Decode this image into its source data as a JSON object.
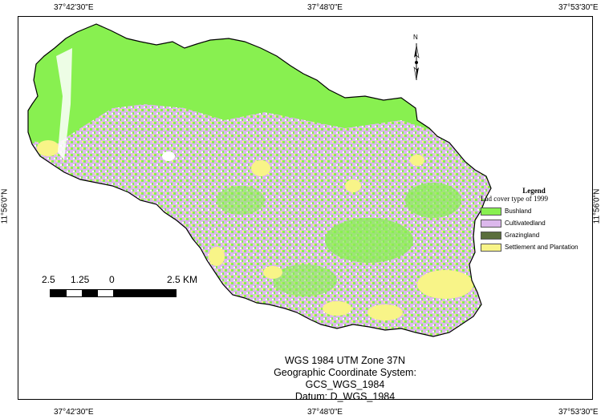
{
  "graticule": {
    "top_labels": [
      "37°42'30\"E",
      "37°48'0\"E",
      "37°53'30\"E"
    ],
    "bottom_labels": [
      "37°42'30\"E",
      "37°48'0\"E",
      "37°53'30\"E"
    ],
    "left_label": "11°56'0\"N",
    "right_label": "11°56'0\"N"
  },
  "north_arrow": {
    "label": "N",
    "icon": "north-arrow-icon"
  },
  "legend": {
    "title": "Legend",
    "subtitle": "Lad cover type of 1999",
    "items": [
      {
        "label": "Bushland",
        "color": "#88f050"
      },
      {
        "label": "Cultivatedland",
        "color": "#dcb8ec"
      },
      {
        "label": "Grazingland",
        "color": "#5a6e3c"
      },
      {
        "label": "Settlement and Plantation",
        "color": "#f8f488"
      }
    ]
  },
  "scale_bar": {
    "labels": [
      "2.5",
      "1.25",
      "0",
      "2.5 KM"
    ]
  },
  "info": {
    "projection": "WGS 1984 UTM Zone 37N",
    "gcs": "Geographic Coordinate System:   GCS_WGS_1984",
    "datum": "Datum:    D_WGS_1984"
  }
}
